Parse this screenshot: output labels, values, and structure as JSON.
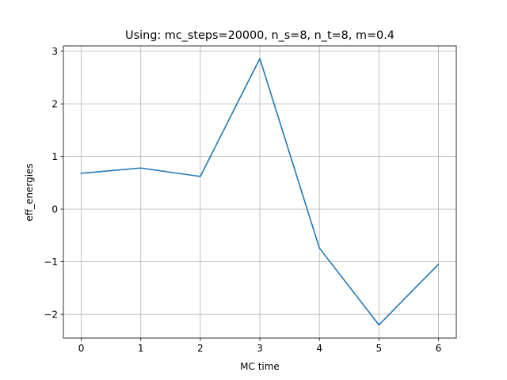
{
  "chart_data": {
    "type": "line",
    "title": "Using: mc_steps=20000, n_s=8, n_t=8, m=0.4",
    "xlabel": "MC time",
    "ylabel": "eff_energies",
    "x": [
      0,
      1,
      2,
      3,
      4,
      5,
      6
    ],
    "series": [
      {
        "values": [
          0.68,
          0.78,
          0.62,
          2.86,
          -0.74,
          -2.2,
          -1.05
        ],
        "color": "#1f77b4"
      }
    ],
    "xlim": [
      -0.3,
      6.3
    ],
    "ylim": [
      -2.45,
      3.1
    ],
    "xticks": [
      "0",
      "1",
      "2",
      "3",
      "4",
      "5",
      "6"
    ],
    "yticks": [
      "−2",
      "−1",
      "0",
      "1",
      "2",
      "3"
    ],
    "ytick_values": [
      -2,
      -1,
      0,
      1,
      2,
      3
    ],
    "grid": true,
    "legend": false
  }
}
